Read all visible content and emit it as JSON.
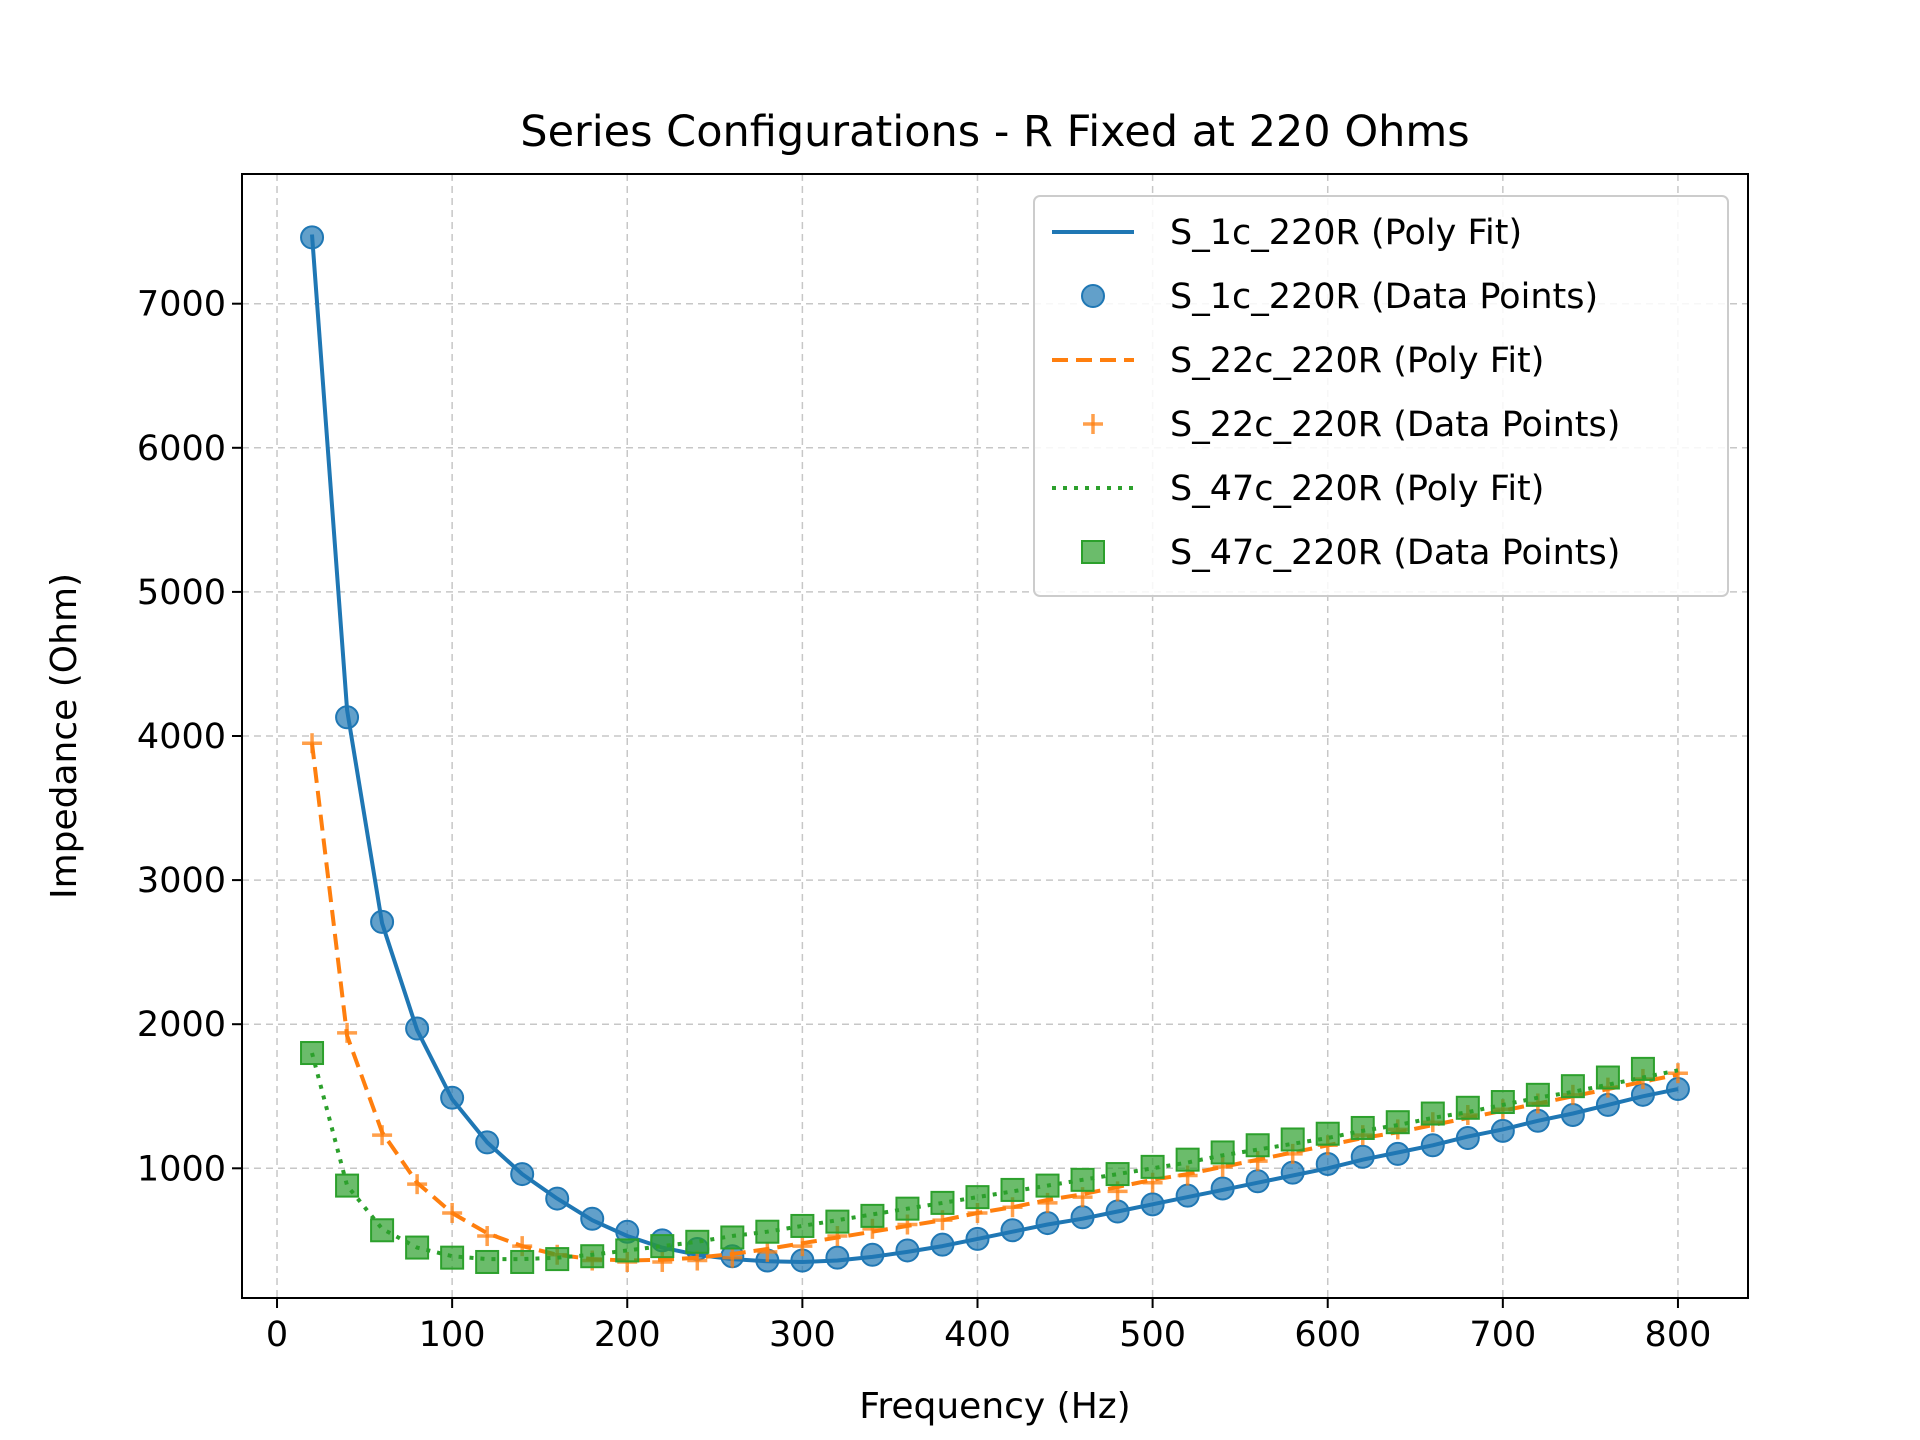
{
  "chart_data": {
    "type": "line",
    "title": "Series Configurations - R Fixed at 220 Ohms",
    "xlabel": "Frequency (Hz)",
    "ylabel": "Impedance (Ohm)",
    "xlim": [
      -20,
      840
    ],
    "ylim": [
      100,
      7900
    ],
    "xticks": [
      0,
      100,
      200,
      300,
      400,
      500,
      600,
      700,
      800
    ],
    "yticks": [
      1000,
      2000,
      3000,
      4000,
      5000,
      6000,
      7000
    ],
    "grid": true,
    "legend_position": "top-right",
    "colors": {
      "blue": "#1f77b4",
      "orange": "#ff7f0e",
      "green": "#2ca02c"
    },
    "x": [
      20,
      40,
      60,
      80,
      100,
      120,
      140,
      160,
      180,
      200,
      220,
      240,
      260,
      280,
      300,
      320,
      340,
      360,
      380,
      400,
      420,
      440,
      460,
      480,
      500,
      520,
      540,
      560,
      580,
      600,
      620,
      640,
      660,
      680,
      700,
      720,
      740,
      760,
      780,
      800
    ],
    "series": [
      {
        "name": "S_1c_220R (Poly Fit)",
        "kind": "fit",
        "style": "solid",
        "color": "#1f77b4",
        "values": [
          7480,
          4180,
          2700,
          1960,
          1480,
          1180,
          960,
          790,
          640,
          530,
          450,
          400,
          370,
          355,
          350,
          360,
          385,
          420,
          460,
          510,
          560,
          610,
          650,
          700,
          750,
          800,
          850,
          900,
          950,
          1000,
          1060,
          1110,
          1160,
          1220,
          1270,
          1330,
          1380,
          1440,
          1500,
          1550
        ]
      },
      {
        "name": "S_1c_220R (Data Points)",
        "kind": "points",
        "marker": "circle",
        "color": "#1f77b4",
        "values": [
          7460,
          4130,
          2710,
          1970,
          1490,
          1180,
          960,
          790,
          650,
          560,
          500,
          440,
          390,
          360,
          360,
          380,
          400,
          430,
          470,
          510,
          570,
          620,
          660,
          700,
          750,
          810,
          860,
          910,
          970,
          1030,
          1080,
          1100,
          1160,
          1210,
          1260,
          1330,
          1370,
          1440,
          1510,
          1550
        ]
      },
      {
        "name": "S_22c_220R (Poly Fit)",
        "kind": "fit",
        "style": "dashed",
        "color": "#ff7f0e",
        "values": [
          3950,
          1920,
          1250,
          900,
          690,
          550,
          460,
          400,
          370,
          360,
          365,
          380,
          405,
          440,
          480,
          520,
          560,
          600,
          640,
          690,
          730,
          780,
          820,
          870,
          920,
          960,
          1010,
          1060,
          1110,
          1160,
          1210,
          1250,
          1300,
          1350,
          1400,
          1450,
          1500,
          1550,
          1600,
          1650
        ]
      },
      {
        "name": "S_22c_220R (Data Points)",
        "kind": "points",
        "marker": "plus",
        "color": "#ff7f0e",
        "values": [
          3950,
          1940,
          1230,
          890,
          690,
          530,
          460,
          400,
          360,
          350,
          350,
          360,
          380,
          420,
          460,
          530,
          580,
          610,
          640,
          690,
          730,
          760,
          800,
          840,
          900,
          950,
          1010,
          1050,
          1100,
          1160,
          1230,
          1270,
          1320,
          1370,
          1410,
          1450,
          1510,
          1560,
          1620,
          1660
        ]
      },
      {
        "name": "S_47c_220R (Poly Fit)",
        "kind": "fit",
        "style": "dotted",
        "color": "#2ca02c",
        "values": [
          1800,
          880,
          580,
          450,
          390,
          370,
          370,
          380,
          400,
          430,
          460,
          490,
          530,
          560,
          600,
          640,
          680,
          720,
          760,
          800,
          840,
          880,
          920,
          960,
          1000,
          1040,
          1090,
          1130,
          1170,
          1210,
          1260,
          1300,
          1350,
          1390,
          1440,
          1490,
          1530,
          1580,
          1630,
          1680
        ]
      },
      {
        "name": "S_47c_220R (Data Points)",
        "kind": "points",
        "marker": "square",
        "color": "#2ca02c",
        "values": [
          1800,
          880,
          570,
          450,
          380,
          350,
          350,
          370,
          390,
          430,
          460,
          490,
          520,
          560,
          600,
          630,
          670,
          720,
          760,
          800,
          850,
          880,
          920,
          960,
          1010,
          1060,
          1110,
          1160,
          1200,
          1240,
          1280,
          1320,
          1380,
          1420,
          1460,
          1510,
          1570,
          1630,
          1690,
          null
        ]
      }
    ]
  }
}
